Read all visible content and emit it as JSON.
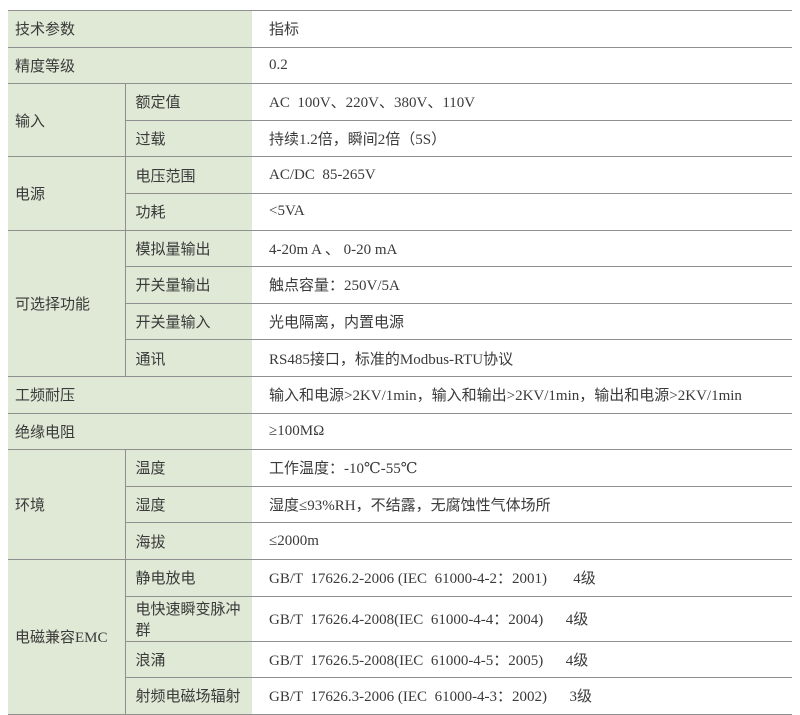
{
  "colors": {
    "label_bg_green": "#dfe9d6",
    "value_bg": "#ffffff",
    "border_gray": "#8f8f8f",
    "text": "#3a3a3a"
  },
  "table": {
    "header": {
      "label": "技术参数",
      "value": "指标"
    },
    "accuracy": {
      "label": "精度等级",
      "value": "0.2"
    },
    "input": {
      "group": "输入",
      "rows": [
        {
          "label": "额定值",
          "value": "AC  100V、220V、380V、110V"
        },
        {
          "label": "过载",
          "value": "持续1.2倍，瞬间2倍（5S）"
        }
      ]
    },
    "power": {
      "group": "电源",
      "rows": [
        {
          "label": "电压范围",
          "value": "AC/DC  85-265V"
        },
        {
          "label": "功耗",
          "value": "<5VA"
        }
      ]
    },
    "optional": {
      "group": "可选择功能",
      "rows": [
        {
          "label": "模拟量输出",
          "value": "4-20m A 、 0-20 mA"
        },
        {
          "label": "开关量输出",
          "value": "触点容量：250V/5A"
        },
        {
          "label": "开关量输入",
          "value": "光电隔离，内置电源"
        },
        {
          "label": "通讯",
          "value": "RS485接口，标准的Modbus-RTU协议"
        }
      ]
    },
    "withstand": {
      "label": "工频耐压",
      "value": "输入和电源>2KV/1min，输入和输出>2KV/1min，输出和电源>2KV/1min"
    },
    "insulation": {
      "label": "绝缘电阻",
      "value": "≥100MΩ"
    },
    "environment": {
      "group": "环境",
      "rows": [
        {
          "label": "温度",
          "value": "工作温度：-10℃-55℃"
        },
        {
          "label": "湿度",
          "value": "湿度≤93%RH，不结露，无腐蚀性气体场所"
        },
        {
          "label": "海拔",
          "value": "≤2000m"
        }
      ]
    },
    "emc": {
      "group": "电磁兼容EMC",
      "rows": [
        {
          "label": "静电放电",
          "value": "GB/T  17626.2-2006 (IEC  61000-4-2：2001)       4级"
        },
        {
          "label": "电快速瞬变脉冲群",
          "value": "GB/T  17626.4-2008(IEC  61000-4-4：2004)      4级"
        },
        {
          "label": "浪涌",
          "value": "GB/T  17626.5-2008(IEC  61000-4-5：2005)      4级"
        },
        {
          "label": "射频电磁场辐射",
          "value": "GB/T  17626.3-2006 (IEC  61000-4-3：2002)      3级"
        }
      ]
    }
  }
}
